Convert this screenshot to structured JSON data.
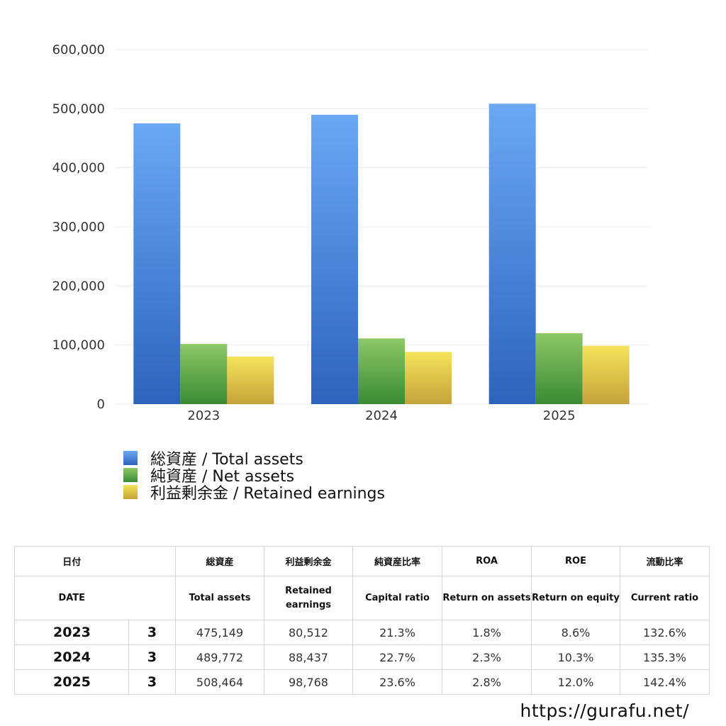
{
  "colors": {
    "total_assets": [
      "#6aa8f4",
      "#2e63bd"
    ],
    "net_assets": [
      "#8cc865",
      "#3a8a35"
    ],
    "retained_earnings": [
      "#f5e45a",
      "#c5a23a"
    ]
  },
  "chart_data": {
    "type": "bar",
    "categories": [
      "2023",
      "2024",
      "2025"
    ],
    "series": [
      {
        "name": "総資産 / Total assets",
        "values": [
          475149,
          489772,
          508464
        ]
      },
      {
        "name": "純資産 / Net assets",
        "values": [
          101800,
          111200,
          120000
        ]
      },
      {
        "name": "利益剰余金 / Retained earnings",
        "values": [
          80512,
          88437,
          98768
        ]
      }
    ],
    "ylim": [
      0,
      600000
    ],
    "yticks": [
      "0",
      "100,000",
      "200,000",
      "300,000",
      "400,000",
      "500,000",
      "600,000"
    ],
    "grid": true,
    "legend": "bottom-left"
  },
  "table": {
    "headers_jp": [
      "日付",
      "総資産",
      "利益剰余金",
      "純資産比率",
      "ROA",
      "ROE",
      "流動比率"
    ],
    "headers_en": [
      "DATE",
      "Total assets",
      "Retained earnings",
      "Capital ratio",
      "Return on assets",
      "Return on equity",
      "Current ratio"
    ],
    "rows": [
      {
        "year": "2023",
        "month": "3",
        "total_assets": "475,149",
        "retained_earnings": "80,512",
        "capital_ratio": "21.3%",
        "roa": "1.8%",
        "roe": "8.6%",
        "current_ratio": "132.6%"
      },
      {
        "year": "2024",
        "month": "3",
        "total_assets": "489,772",
        "retained_earnings": "88,437",
        "capital_ratio": "22.7%",
        "roa": "2.3%",
        "roe": "10.3%",
        "current_ratio": "135.3%"
      },
      {
        "year": "2025",
        "month": "3",
        "total_assets": "508,464",
        "retained_earnings": "98,768",
        "capital_ratio": "23.6%",
        "roa": "2.8%",
        "roe": "12.0%",
        "current_ratio": "142.4%"
      }
    ]
  },
  "footer": {
    "url": "https://gurafu.net/"
  }
}
